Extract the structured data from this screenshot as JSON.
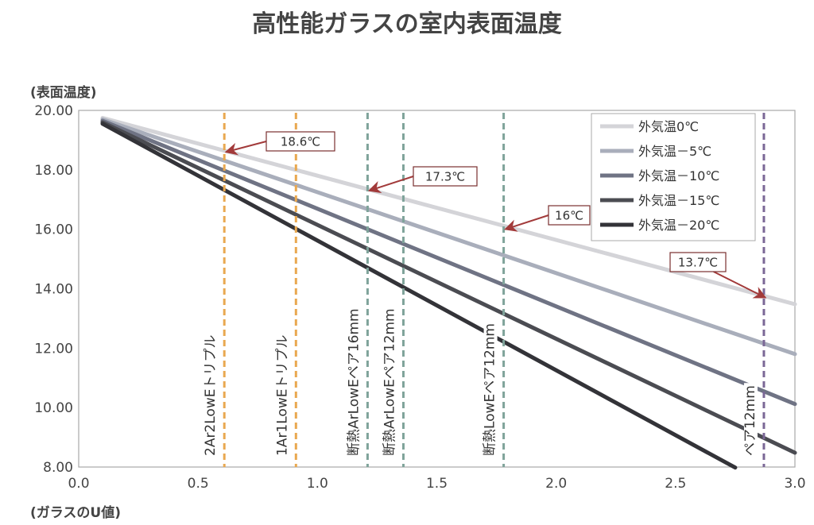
{
  "chart_data": {
    "type": "line",
    "title": "高性能ガラスの室内表面温度",
    "ylabel": "(表面温度)",
    "xlabel": "(ガラスのU値)",
    "xlim": [
      0.0,
      3.0
    ],
    "ylim": [
      8.0,
      20.0
    ],
    "x_ticks": [
      "0.0",
      "0.5",
      "1.0",
      "1.5",
      "2.0",
      "2.5",
      "3.0"
    ],
    "y_ticks": [
      "8.00",
      "10.00",
      "12.00",
      "14.00",
      "16.00",
      "18.00",
      "20.00"
    ],
    "grid": false,
    "legend_position": "top-right",
    "series": [
      {
        "name": "外気温0℃",
        "color": "#d4d4d8",
        "x": [
          0.1,
          3.0
        ],
        "y": [
          19.75,
          13.48
        ]
      },
      {
        "name": "外気温－5℃",
        "color": "#a9aebb",
        "x": [
          0.1,
          3.0
        ],
        "y": [
          19.7,
          11.8
        ]
      },
      {
        "name": "外気温－10℃",
        "color": "#6f7384",
        "x": [
          0.1,
          3.0
        ],
        "y": [
          19.65,
          10.12
        ]
      },
      {
        "name": "外気温－15℃",
        "color": "#4b4c52",
        "x": [
          0.1,
          3.0
        ],
        "y": [
          19.6,
          8.48
        ]
      },
      {
        "name": "外気温－20℃",
        "color": "#333338",
        "x": [
          0.1,
          2.75
        ],
        "y": [
          19.55,
          7.98
        ]
      }
    ],
    "vertical_lines": [
      {
        "x": 0.61,
        "label": "2Ar2LowEトリプル",
        "color": "#e9a850"
      },
      {
        "x": 0.91,
        "label": "1Ar1LowEトリプル",
        "color": "#e9a850"
      },
      {
        "x": 1.21,
        "label": "断熱ArLowEペア16mm",
        "color": "#7fa39a"
      },
      {
        "x": 1.36,
        "label": "断熱ArLowEペア12mm",
        "color": "#7fa39a"
      },
      {
        "x": 1.78,
        "label": "断熱LowEペア12mm",
        "color": "#7fa39a"
      },
      {
        "x": 2.87,
        "label": "ペア12mm",
        "color": "#7b6796"
      }
    ],
    "annotations": [
      {
        "text": "18.6℃",
        "x": 0.61,
        "y": 18.6
      },
      {
        "text": "17.3℃",
        "x": 1.21,
        "y": 17.3
      },
      {
        "text": "16℃",
        "x": 1.78,
        "y": 16.0
      },
      {
        "text": "13.7℃",
        "x": 2.87,
        "y": 13.7
      }
    ]
  }
}
